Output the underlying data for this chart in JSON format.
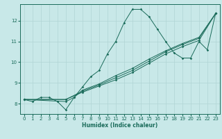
{
  "title": "",
  "xlabel": "Humidex (Indice chaleur)",
  "bg_color": "#c8e8e8",
  "line_color": "#1a6b5a",
  "grid_color": "#b0d4d4",
  "xlim": [
    -0.5,
    23.5
  ],
  "ylim": [
    7.5,
    12.8
  ],
  "yticks": [
    8,
    9,
    10,
    11,
    12
  ],
  "xticks": [
    0,
    1,
    2,
    3,
    4,
    5,
    6,
    7,
    8,
    9,
    10,
    11,
    12,
    13,
    14,
    15,
    16,
    17,
    18,
    19,
    20,
    21,
    22,
    23
  ],
  "series1": [
    [
      0,
      8.2
    ],
    [
      1,
      8.1
    ],
    [
      2,
      8.3
    ],
    [
      3,
      8.3
    ],
    [
      4,
      8.1
    ],
    [
      5,
      7.7
    ],
    [
      6,
      8.3
    ],
    [
      7,
      8.8
    ],
    [
      8,
      9.3
    ],
    [
      9,
      9.6
    ],
    [
      10,
      10.4
    ],
    [
      11,
      11.0
    ],
    [
      12,
      11.9
    ],
    [
      13,
      12.55
    ],
    [
      14,
      12.55
    ],
    [
      15,
      12.2
    ],
    [
      16,
      11.6
    ],
    [
      17,
      11.0
    ],
    [
      18,
      10.45
    ],
    [
      19,
      10.2
    ],
    [
      20,
      10.2
    ],
    [
      21,
      11.0
    ],
    [
      22,
      10.6
    ],
    [
      23,
      12.35
    ]
  ],
  "series2": [
    [
      0,
      8.2
    ],
    [
      5,
      8.2
    ],
    [
      7,
      8.55
    ],
    [
      9,
      8.85
    ],
    [
      11,
      9.15
    ],
    [
      13,
      9.5
    ],
    [
      15,
      9.95
    ],
    [
      17,
      10.4
    ],
    [
      19,
      10.75
    ],
    [
      21,
      11.05
    ],
    [
      23,
      12.35
    ]
  ],
  "series3": [
    [
      0,
      8.2
    ],
    [
      5,
      8.2
    ],
    [
      7,
      8.6
    ],
    [
      9,
      8.9
    ],
    [
      11,
      9.25
    ],
    [
      13,
      9.6
    ],
    [
      15,
      10.05
    ],
    [
      17,
      10.5
    ],
    [
      19,
      10.85
    ],
    [
      21,
      11.15
    ],
    [
      23,
      12.35
    ]
  ],
  "series4": [
    [
      0,
      8.2
    ],
    [
      5,
      8.1
    ],
    [
      6,
      8.3
    ],
    [
      7,
      8.65
    ],
    [
      9,
      8.95
    ],
    [
      11,
      9.35
    ],
    [
      13,
      9.7
    ],
    [
      15,
      10.15
    ],
    [
      17,
      10.55
    ],
    [
      19,
      10.9
    ],
    [
      21,
      11.2
    ],
    [
      23,
      12.35
    ]
  ]
}
